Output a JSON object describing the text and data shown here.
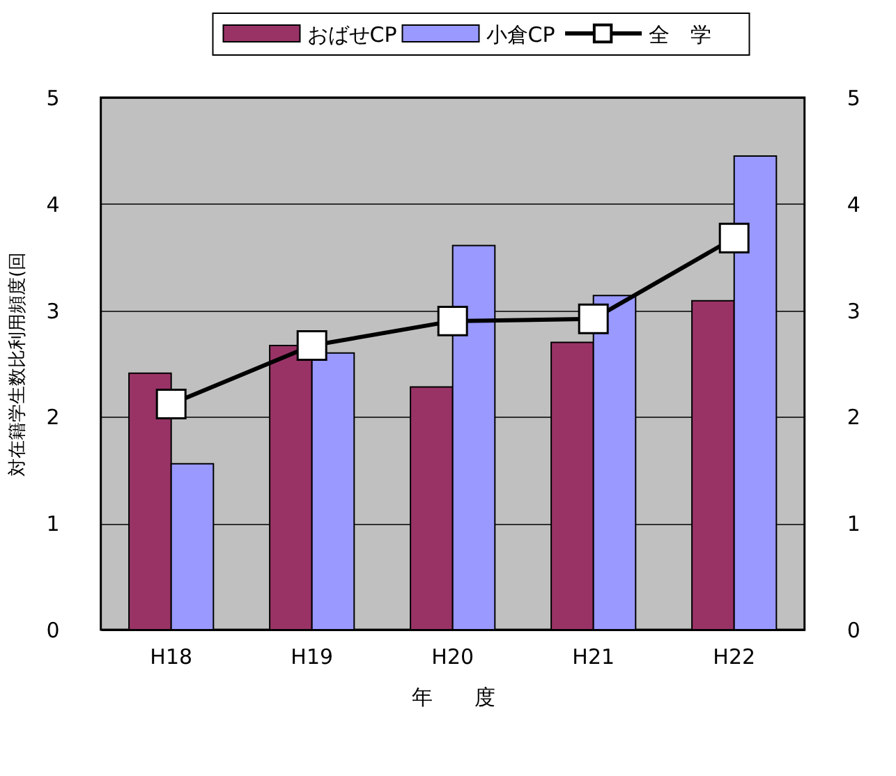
{
  "chart_data": {
    "type": "bar",
    "categories": [
      "H18",
      "H19",
      "H20",
      "H21",
      "H22"
    ],
    "xlabel": "年　　度",
    "ylabel": "対在籍学生数比利用頻度(回",
    "ylim": [
      0,
      5
    ],
    "yticks": [
      0,
      1,
      2,
      3,
      4,
      5
    ],
    "y2lim": [
      0,
      5
    ],
    "y2ticks": [
      0,
      1,
      2,
      3,
      4,
      5
    ],
    "grid": "y",
    "legend": "top",
    "marker": "square",
    "series": [
      {
        "name": "おばせCP",
        "color": "#993366",
        "values": [
          2.41,
          2.67,
          2.28,
          2.7,
          3.09
        ]
      },
      {
        "name": "小倉CP",
        "color": "#9999ff",
        "values": [
          1.56,
          2.6,
          3.61,
          3.14,
          4.45
        ]
      },
      {
        "name": "全　学",
        "type": "line",
        "color": "#000000",
        "values": [
          2.12,
          2.67,
          2.9,
          2.92,
          3.68
        ]
      }
    ]
  }
}
